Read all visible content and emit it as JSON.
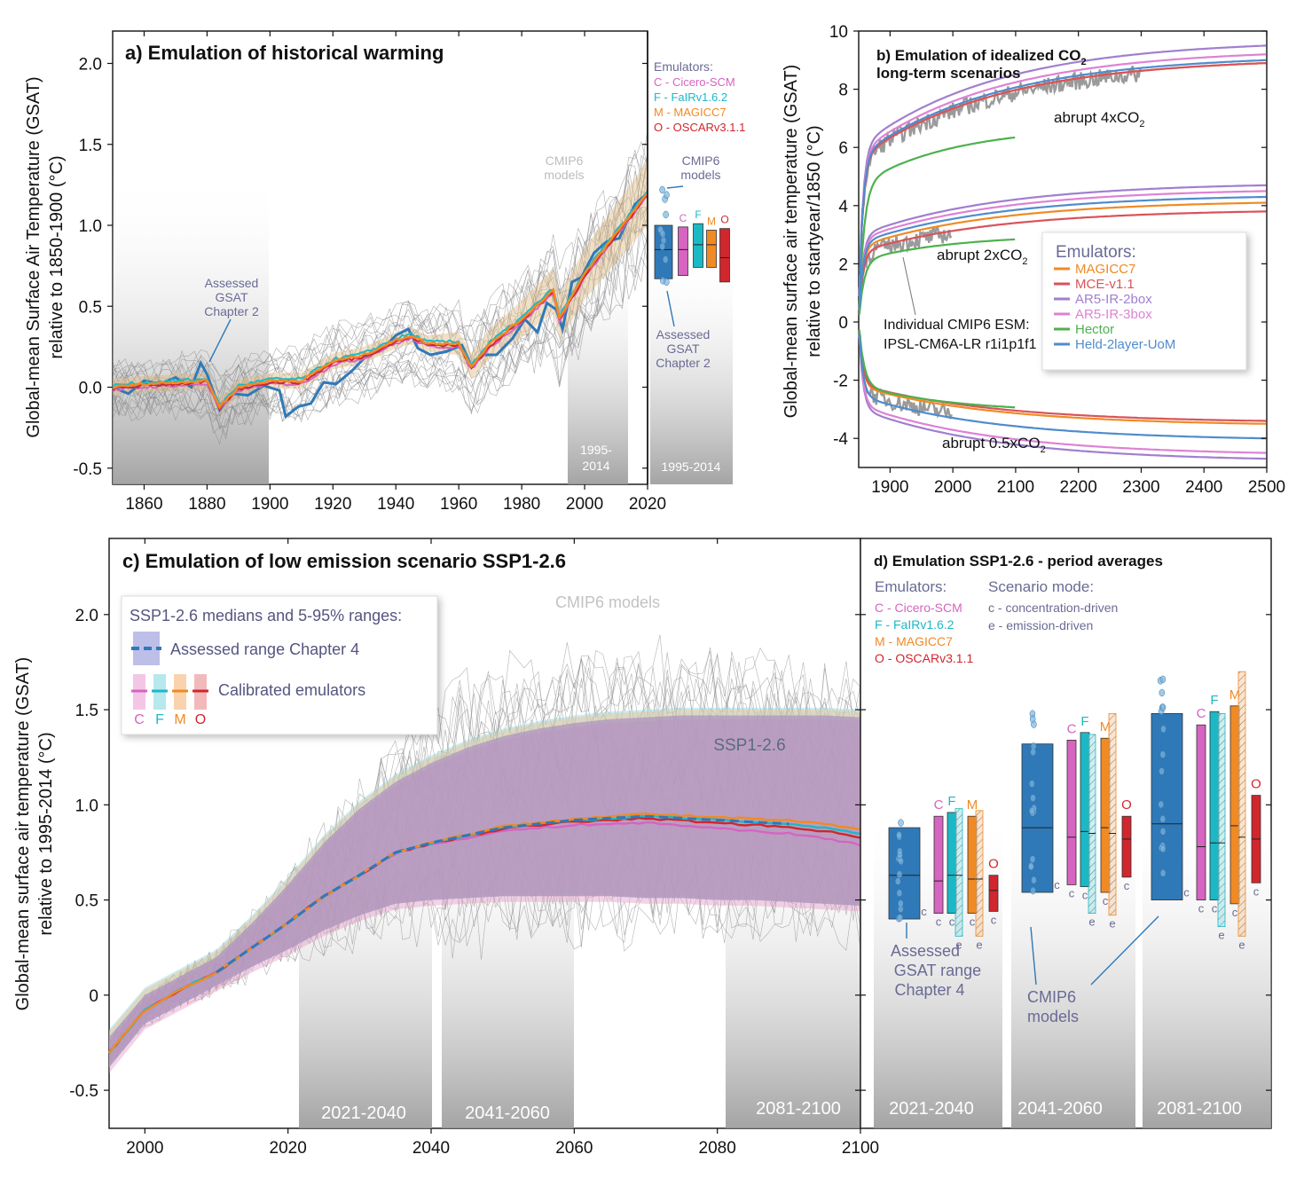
{
  "colors": {
    "cicero": "#d664c0",
    "fair": "#1bb9c6",
    "magicc": "#f08a24",
    "oscar": "#d0262d",
    "assessed": "#2f79b8",
    "mce": "#d9535a",
    "ar5_2box": "#a07fcf",
    "ar5_3box": "#de82d4",
    "hector": "#4db14e",
    "held": "#4f8ccc",
    "cmip6": "#999999",
    "slate": "#6a6a95"
  },
  "chart_data": [
    {
      "panel": "a",
      "type": "line",
      "title": "a) Emulation of historical warming",
      "ylabel": "Global-mean Surface Air Temperature (GSAT)",
      "ylabel2": "relative to 1850-1900 (°C)",
      "xlim": [
        1850,
        2020
      ],
      "ylim": [
        -0.6,
        2.2
      ],
      "xticks": [
        "1860",
        "1880",
        "1900",
        "1920",
        "1940",
        "1960",
        "1980",
        "2000",
        "2020"
      ],
      "yticks": [
        "-0.5",
        "0.0",
        "0.5",
        "1.0",
        "1.5",
        "2.0"
      ],
      "emulators_title": "Emulators:",
      "emulators": [
        "C - Cicero-SCM",
        "F - FaIRv1.6.2",
        "M - MAGICC7",
        "O - OSCARv3.1.1"
      ],
      "annotations": [
        "Assessed",
        "GSAT",
        "Chapter 2",
        "CMIP6",
        "models",
        "1995-",
        "2014",
        "1995-2014"
      ],
      "emulator_median_x": [
        1850,
        1860,
        1870,
        1880,
        1884,
        1890,
        1900,
        1910,
        1920,
        1930,
        1940,
        1945,
        1950,
        1960,
        1964,
        1970,
        1980,
        1990,
        1992,
        2000,
        2010,
        2020
      ],
      "emulator_median_y": [
        0.0,
        0.02,
        0.03,
        0.04,
        -0.12,
        0.0,
        0.04,
        0.04,
        0.16,
        0.2,
        0.29,
        0.32,
        0.27,
        0.27,
        0.13,
        0.27,
        0.42,
        0.6,
        0.43,
        0.7,
        0.95,
        1.2
      ],
      "assessed_x": [
        1850,
        1855,
        1860,
        1865,
        1870,
        1875,
        1878,
        1880,
        1884,
        1888,
        1893,
        1898,
        1903,
        1905,
        1909,
        1913,
        1917,
        1921,
        1926,
        1931,
        1936,
        1940,
        1944,
        1947,
        1951,
        1956,
        1961,
        1964,
        1968,
        1972,
        1977,
        1981,
        1985,
        1988,
        1991,
        1993,
        1996,
        1999,
        2003,
        2007,
        2011,
        2016,
        2020
      ],
      "assessed_y": [
        0.0,
        -0.04,
        0.04,
        0.02,
        0.06,
        0.0,
        0.15,
        0.08,
        -0.14,
        -0.04,
        -0.05,
        0.01,
        -0.02,
        -0.18,
        -0.12,
        -0.1,
        0.03,
        0.02,
        0.1,
        0.2,
        0.24,
        0.32,
        0.36,
        0.24,
        0.2,
        0.22,
        0.26,
        0.13,
        0.2,
        0.2,
        0.3,
        0.42,
        0.34,
        0.52,
        0.48,
        0.36,
        0.65,
        0.68,
        0.83,
        0.9,
        0.92,
        1.13,
        1.2
      ],
      "bars_1995_2014": [
        {
          "label": "",
          "lo": 0.67,
          "med": 0.85,
          "hi": 1.0,
          "color": "assessed"
        },
        {
          "label": "C",
          "lo": 0.69,
          "med": 0.85,
          "hi": 0.99,
          "color": "cicero"
        },
        {
          "label": "F",
          "lo": 0.74,
          "med": 0.88,
          "hi": 1.01,
          "color": "fair"
        },
        {
          "label": "M",
          "lo": 0.74,
          "med": 0.88,
          "hi": 0.97,
          "color": "magicc"
        },
        {
          "label": "O",
          "lo": 0.65,
          "med": 0.8,
          "hi": 0.98,
          "color": "oscar"
        }
      ]
    },
    {
      "panel": "b",
      "type": "line",
      "title_line1": "b) Emulation of idealized CO",
      "title_sub": "2",
      "title_line2": "long-term scenarios",
      "ylabel": "Global-mean surface air temperature (GSAT)",
      "ylabel2": "relative to startyear/1850 (°C)",
      "xlim": [
        1850,
        2500
      ],
      "ylim": [
        -5,
        10
      ],
      "xticks": [
        "1900",
        "2000",
        "2100",
        "2200",
        "2300",
        "2400",
        "2500"
      ],
      "yticks": [
        "-4",
        "-2",
        "0",
        "2",
        "4",
        "6",
        "8",
        "10"
      ],
      "annotations": [
        "abrupt 4xCO",
        "abrupt 2xCO",
        "abrupt 0.5xCO",
        "Individual CMIP6 ESM:",
        "IPSL-CM6A-LR r1i1p1f1"
      ],
      "annotation_sub": "2",
      "legend_title": "Emulators:",
      "series": [
        {
          "name": "MAGICC7",
          "color": "magicc",
          "end_4x": 8.9,
          "end_2x": 4.1,
          "end_05x": -3.5
        },
        {
          "name": "MCE-v1.1",
          "color": "mce",
          "end_4x": 8.9,
          "end_2x": 3.8,
          "end_05x": -3.4
        },
        {
          "name": "AR5-IR-2box",
          "color": "ar5_2box",
          "end_4x": 9.5,
          "end_2x": 4.7,
          "end_05x": -4.7
        },
        {
          "name": "AR5-IR-3box",
          "color": "ar5_3box",
          "end_4x": 9.2,
          "end_2x": 4.5,
          "end_05x": -4.5
        },
        {
          "name": "Hector",
          "color": "hector",
          "end_4x": 6.7,
          "end_2x": 3.0,
          "end_05x": -3.1
        },
        {
          "name": "Held-2layer-UoM",
          "color": "held",
          "end_4x": 9.0,
          "end_2x": 4.3,
          "end_05x": -4.0
        }
      ]
    },
    {
      "panel": "c",
      "type": "line",
      "title": "c) Emulation of low emission scenario SSP1-2.6",
      "ylabel": "Global-mean surface air temperature (GSAT)",
      "ylabel2": "relative to 1995-2014 (°C)",
      "xlim": [
        1995,
        2100
      ],
      "ylim": [
        -0.7,
        2.4
      ],
      "xticks": [
        "2000",
        "2020",
        "2040",
        "2060",
        "2080",
        "2100"
      ],
      "yticks": [
        "-0.5",
        "0",
        "0.5",
        "1.0",
        "1.5",
        "2.0"
      ],
      "legend_title": "SSP1-2.6 medians and 5-95% ranges:",
      "legend_assessed": "Assessed range Chapter 4",
      "legend_emulators": "Calibrated emulators",
      "legend_letters": [
        "C",
        "F",
        "M",
        "O"
      ],
      "annotations": [
        "CMIP6 models",
        "SSP1-2.6",
        "2021-2040",
        "2041-2060",
        "2081-2100"
      ],
      "median_x": [
        1995,
        2000,
        2005,
        2010,
        2015,
        2020,
        2025,
        2030,
        2035,
        2040,
        2045,
        2050,
        2055,
        2060,
        2065,
        2070,
        2075,
        2080,
        2085,
        2090,
        2095,
        2100
      ],
      "median_y": [
        -0.3,
        -0.08,
        0.03,
        0.12,
        0.25,
        0.38,
        0.52,
        0.63,
        0.75,
        0.8,
        0.84,
        0.88,
        0.9,
        0.92,
        0.93,
        0.94,
        0.93,
        0.92,
        0.91,
        0.9,
        0.88,
        0.85
      ],
      "low_y": [
        -0.38,
        -0.15,
        -0.05,
        0.05,
        0.15,
        0.24,
        0.34,
        0.42,
        0.48,
        0.5,
        0.51,
        0.52,
        0.52,
        0.52,
        0.52,
        0.51,
        0.51,
        0.5,
        0.5,
        0.49,
        0.48,
        0.47
      ],
      "high_y": [
        -0.22,
        0.0,
        0.1,
        0.2,
        0.38,
        0.58,
        0.8,
        0.98,
        1.12,
        1.22,
        1.3,
        1.36,
        1.4,
        1.43,
        1.45,
        1.46,
        1.47,
        1.47,
        1.47,
        1.47,
        1.47,
        1.46
      ]
    },
    {
      "panel": "d",
      "type": "bar",
      "title": "d) Emulation SSP1-2.6 - period averages",
      "emulators_title": "Emulators:",
      "emulators": [
        "C - Cicero-SCM",
        "F - FaIRv1.6.2",
        "M - MAGICC7",
        "O - OSCARv3.1.1"
      ],
      "mode_title": "Scenario mode:",
      "modes": [
        "c - concentration-driven",
        "e - emission-driven"
      ],
      "annotations": [
        "Assessed",
        "GSAT range",
        "Chapter 4",
        "CMIP6",
        "models"
      ],
      "periods": [
        {
          "label": "2021-2040",
          "bars": [
            {
              "label": "",
              "mode": "c",
              "lo": 0.4,
              "med": 0.63,
              "hi": 0.88,
              "color": "assessed"
            },
            {
              "label": "C",
              "mode": "c",
              "lo": 0.43,
              "med": 0.6,
              "hi": 0.94,
              "color": "cicero"
            },
            {
              "label": "F",
              "mode": "c",
              "lo": 0.43,
              "med": 0.63,
              "hi": 0.96,
              "color": "fair"
            },
            {
              "label": "",
              "mode": "e",
              "lo": 0.31,
              "med": 0.63,
              "hi": 0.98,
              "color": "fair"
            },
            {
              "label": "M",
              "mode": "c",
              "lo": 0.43,
              "med": 0.61,
              "hi": 0.94,
              "color": "magicc"
            },
            {
              "label": "",
              "mode": "e",
              "lo": 0.31,
              "med": 0.61,
              "hi": 0.97,
              "color": "magicc"
            },
            {
              "label": "O",
              "mode": "c",
              "lo": 0.44,
              "med": 0.55,
              "hi": 0.63,
              "color": "oscar"
            }
          ]
        },
        {
          "label": "2041-2060",
          "bars": [
            {
              "label": "",
              "mode": "c",
              "lo": 0.54,
              "med": 0.88,
              "hi": 1.32,
              "color": "assessed"
            },
            {
              "label": "C",
              "mode": "c",
              "lo": 0.58,
              "med": 0.83,
              "hi": 1.34,
              "color": "cicero"
            },
            {
              "label": "F",
              "mode": "c",
              "lo": 0.57,
              "med": 0.86,
              "hi": 1.38,
              "color": "fair"
            },
            {
              "label": "",
              "mode": "e",
              "lo": 0.43,
              "med": 0.85,
              "hi": 1.37,
              "color": "fair"
            },
            {
              "label": "M",
              "mode": "c",
              "lo": 0.54,
              "med": 0.88,
              "hi": 1.35,
              "color": "magicc"
            },
            {
              "label": "",
              "mode": "e",
              "lo": 0.42,
              "med": 0.85,
              "hi": 1.48,
              "color": "magicc"
            },
            {
              "label": "O",
              "mode": "c",
              "lo": 0.62,
              "med": 0.82,
              "hi": 0.94,
              "color": "oscar"
            }
          ]
        },
        {
          "label": "2081-2100",
          "bars": [
            {
              "label": "",
              "mode": "c",
              "lo": 0.5,
              "med": 0.9,
              "hi": 1.48,
              "color": "assessed"
            },
            {
              "label": "C",
              "mode": "c",
              "lo": 0.5,
              "med": 0.78,
              "hi": 1.42,
              "color": "cicero"
            },
            {
              "label": "F",
              "mode": "c",
              "lo": 0.5,
              "med": 0.8,
              "hi": 1.49,
              "color": "fair"
            },
            {
              "label": "",
              "mode": "e",
              "lo": 0.36,
              "med": 0.8,
              "hi": 1.48,
              "color": "fair"
            },
            {
              "label": "M",
              "mode": "c",
              "lo": 0.48,
              "med": 0.89,
              "hi": 1.52,
              "color": "magicc"
            },
            {
              "label": "",
              "mode": "e",
              "lo": 0.31,
              "med": 0.83,
              "hi": 1.7,
              "color": "magicc"
            },
            {
              "label": "O",
              "mode": "c",
              "lo": 0.59,
              "med": 0.82,
              "hi": 1.05,
              "color": "oscar"
            }
          ]
        }
      ]
    }
  ]
}
